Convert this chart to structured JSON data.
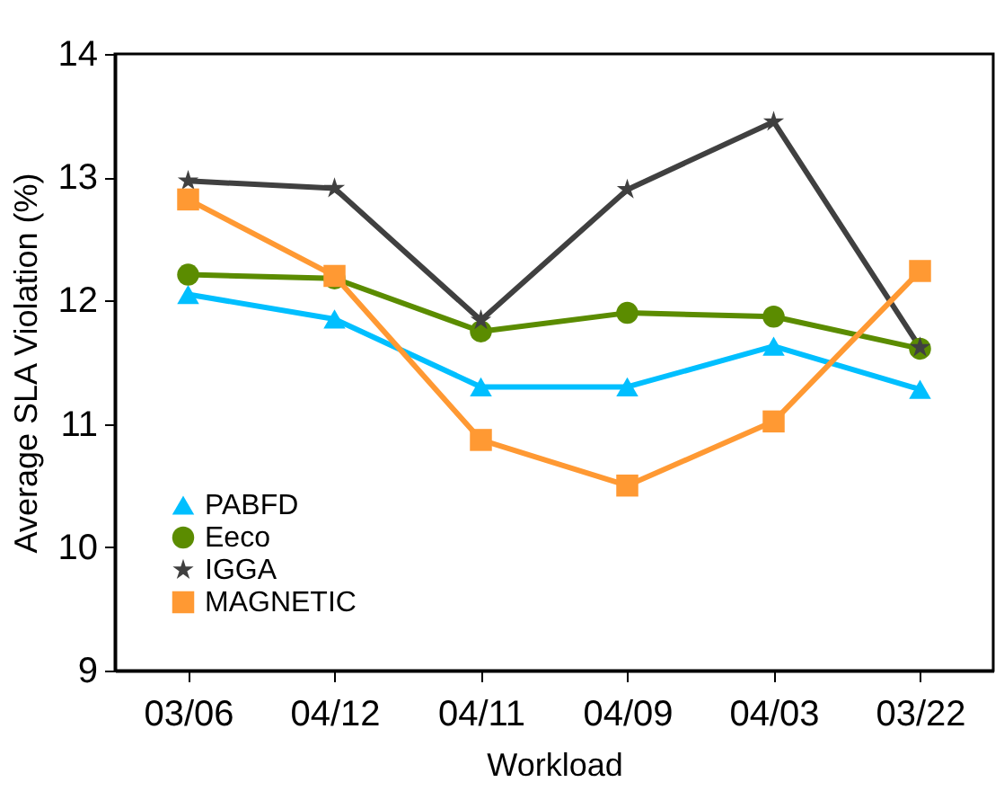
{
  "chart_data": {
    "type": "line",
    "xlabel": "Workload",
    "ylabel": "Average SLA Violation (%)",
    "categories": [
      "03/06",
      "04/12",
      "04/11",
      "04/09",
      "04/03",
      "03/22"
    ],
    "ylim": [
      9,
      14
    ],
    "yticks": [
      9,
      10,
      11,
      12,
      13,
      14
    ],
    "grid": false,
    "legend": "bottom left",
    "line_style": "solid",
    "series": [
      {
        "name": "PABFD",
        "color": "#00bfff",
        "marker": "triangle",
        "values": [
          12.05,
          11.85,
          11.3,
          11.3,
          11.63,
          11.28
        ]
      },
      {
        "name": "Eeco",
        "color": "#5b8c00",
        "marker": "circle",
        "values": [
          12.21,
          12.18,
          11.75,
          11.9,
          11.87,
          11.61
        ]
      },
      {
        "name": "IGGA",
        "color": "#404040",
        "marker": "star",
        "values": [
          12.97,
          12.91,
          11.84,
          12.9,
          13.45,
          11.62
        ]
      },
      {
        "name": "MAGNETIC",
        "color": "#ff9933",
        "marker": "square",
        "values": [
          12.82,
          12.2,
          10.87,
          10.5,
          11.02,
          12.24
        ]
      }
    ]
  }
}
